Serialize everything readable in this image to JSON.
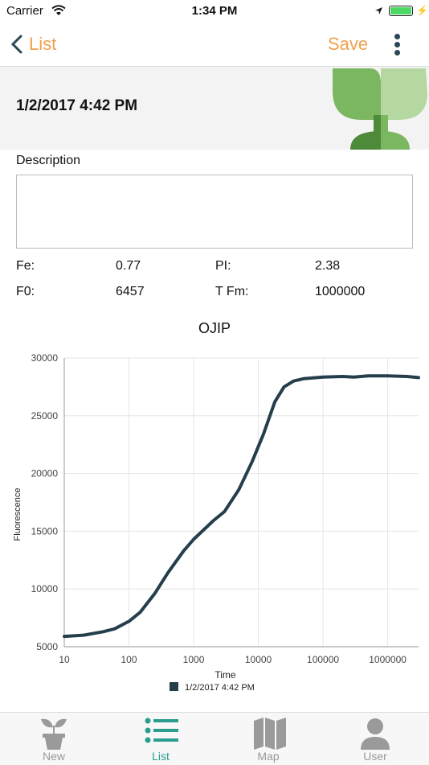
{
  "status": {
    "carrier": "Carrier",
    "time": "1:34 PM"
  },
  "nav": {
    "back_label": "List",
    "save_label": "Save"
  },
  "header": {
    "title": "1/2/2017 4:42 PM"
  },
  "description": {
    "label": "Description",
    "value": ""
  },
  "metrics": [
    {
      "label": "Fe:",
      "value": "0.77"
    },
    {
      "label": "PI:",
      "value": "2.38"
    },
    {
      "label": "F0:",
      "value": "6457"
    },
    {
      "label": "T Fm:",
      "value": "1000000"
    }
  ],
  "colors": {
    "accent": "#f0a050",
    "tab_active": "#2a9d8f",
    "line": "#243f4b"
  },
  "chart_data": {
    "type": "line",
    "title": "OJIP",
    "xlabel": "Time",
    "ylabel": "Fluorescence",
    "x_scale": "log",
    "xlim": [
      10,
      3000000
    ],
    "ylim": [
      5000,
      30000
    ],
    "x_ticks": [
      "10",
      "100",
      "1000",
      "10000",
      "100000",
      "1000000"
    ],
    "y_ticks": [
      "5000",
      "10000",
      "15000",
      "20000",
      "25000",
      "30000"
    ],
    "grid": true,
    "legend_position": "bottom",
    "series": [
      {
        "name": "1/2/2017 4:42 PM",
        "x": [
          10,
          20,
          40,
          60,
          100,
          150,
          250,
          400,
          700,
          1000,
          2000,
          3000,
          5000,
          8000,
          12000,
          18000,
          25000,
          35000,
          50000,
          100000,
          200000,
          300000,
          500000,
          1000000,
          2000000,
          3000000
        ],
        "y": [
          5900,
          6000,
          6300,
          6550,
          7200,
          8000,
          9600,
          11400,
          13300,
          14300,
          15900,
          16700,
          18600,
          21000,
          23400,
          26200,
          27500,
          28000,
          28200,
          28350,
          28400,
          28350,
          28450,
          28450,
          28400,
          28300
        ]
      }
    ]
  },
  "tabs": [
    {
      "label": "New",
      "icon": "plant-pot-icon"
    },
    {
      "label": "List",
      "icon": "list-icon"
    },
    {
      "label": "Map",
      "icon": "map-icon"
    },
    {
      "label": "User",
      "icon": "user-icon"
    }
  ]
}
